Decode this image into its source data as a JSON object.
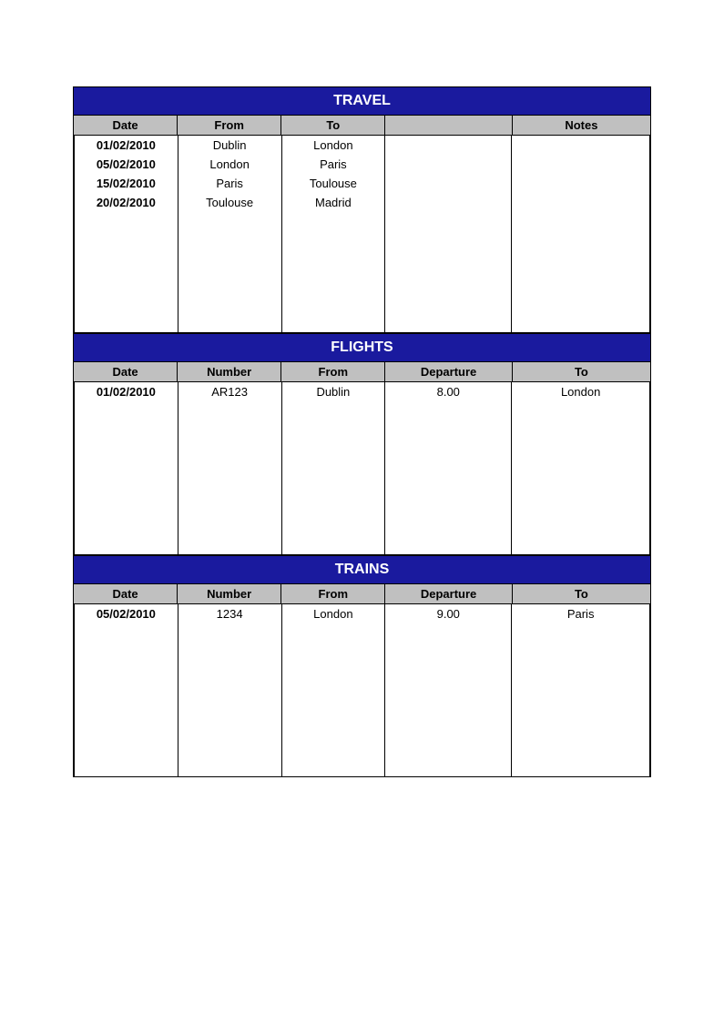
{
  "styling": {
    "title_bg": "#1a1a9e",
    "title_color": "#ffffff",
    "title_fontsize": 16,
    "header_bg": "#c0c0c0",
    "header_color": "#000000",
    "header_fontsize": 13,
    "cell_fontsize": 13,
    "border_color": "#000000",
    "page_bg": "#ffffff",
    "font_family": "Arial, sans-serif"
  },
  "sections": {
    "travel": {
      "title": "TRAVEL",
      "columns": [
        "Date",
        "From",
        "To",
        "",
        "Notes"
      ],
      "column_widths": [
        "18%",
        "18%",
        "18%",
        "22%",
        "24%"
      ],
      "rows": [
        [
          "01/02/2010",
          "Dublin",
          "London",
          "",
          ""
        ],
        [
          "05/02/2010",
          "London",
          "Paris",
          "",
          ""
        ],
        [
          "15/02/2010",
          "Paris",
          "Toulouse",
          "",
          ""
        ],
        [
          "20/02/2010",
          "Toulouse",
          "Madrid",
          "",
          ""
        ]
      ],
      "bold_columns": [
        0
      ],
      "body_height": 217
    },
    "flights": {
      "title": "FLIGHTS",
      "columns": [
        "Date",
        "Number",
        "From",
        "Departure",
        "To"
      ],
      "column_widths": [
        "18%",
        "18%",
        "18%",
        "22%",
        "24%"
      ],
      "rows": [
        [
          "01/02/2010",
          "AR123",
          "Dublin",
          "8.00",
          "London"
        ]
      ],
      "bold_columns": [
        0
      ],
      "body_height": 190
    },
    "trains": {
      "title": "TRAINS",
      "columns": [
        "Date",
        "Number",
        "From",
        "Departure",
        "To"
      ],
      "column_widths": [
        "18%",
        "18%",
        "18%",
        "22%",
        "24%"
      ],
      "rows": [
        [
          "05/02/2010",
          "1234",
          "London",
          "9.00",
          "Paris"
        ]
      ],
      "bold_columns": [
        0
      ],
      "body_height": 190
    }
  },
  "section_order": [
    "travel",
    "flights",
    "trains"
  ]
}
